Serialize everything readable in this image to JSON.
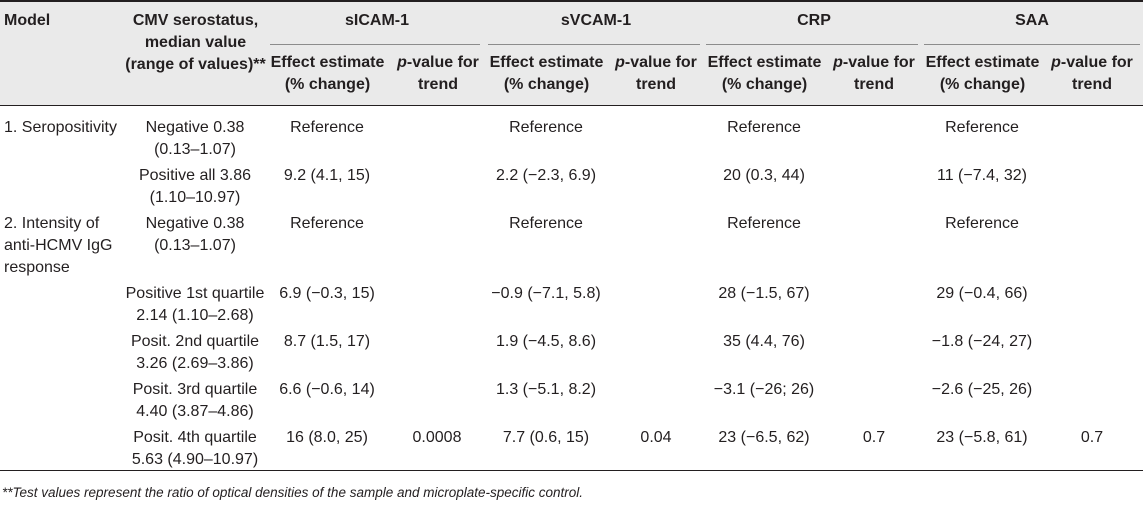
{
  "header": {
    "model": "Model",
    "cmv_line1": "CMV serostatus,",
    "cmv_line2": "median value",
    "cmv_line3": "(range of values)**",
    "groups": [
      "sICAM-1",
      "sVCAM-1",
      "CRP",
      "SAA"
    ],
    "effect_line1": "Effect estimate",
    "effect_line2": "(% change)",
    "p_line1_italic": "p",
    "p_line1_rest": "-value for",
    "p_line2": "trend"
  },
  "rows": [
    {
      "model": [
        "1. Seropositivity"
      ],
      "cmv": [
        "Negative 0.38",
        "(0.13–1.07)"
      ],
      "values": [
        "Reference",
        "",
        "Reference",
        "",
        "Reference",
        "",
        "Reference",
        ""
      ]
    },
    {
      "model": [],
      "cmv": [
        "Positive all 3.86",
        "(1.10–10.97)"
      ],
      "values": [
        "9.2 (4.1, 15)",
        "",
        "2.2 (−2.3, 6.9)",
        "",
        "20 (0.3, 44)",
        "",
        "11 (−7.4, 32)",
        ""
      ]
    },
    {
      "model": [
        "2. Intensity of",
        "anti-HCMV IgG",
        "response"
      ],
      "cmv": [
        "Negative 0.38",
        "(0.13–1.07)"
      ],
      "values": [
        "Reference",
        "",
        "Reference",
        "",
        "Reference",
        "",
        "Reference",
        ""
      ]
    },
    {
      "model": [],
      "cmv": [
        "Positive 1st quartile",
        "2.14 (1.10–2.68)"
      ],
      "values": [
        "6.9 (−0.3, 15)",
        "",
        "−0.9 (−7.1, 5.8)",
        "",
        "28 (−1.5, 67)",
        "",
        "29 (−0.4, 66)",
        ""
      ]
    },
    {
      "model": [],
      "cmv": [
        "Posit. 2nd quartile",
        "3.26 (2.69–3.86)"
      ],
      "values": [
        "8.7 (1.5, 17)",
        "",
        "1.9 (−4.5, 8.6)",
        "",
        "35 (4.4, 76)",
        "",
        "−1.8 (−24, 27)",
        ""
      ]
    },
    {
      "model": [],
      "cmv": [
        "Posit. 3rd quartile",
        "4.40 (3.87–4.86)"
      ],
      "values": [
        "6.6 (−0.6, 14)",
        "",
        "1.3 (−5.1, 8.2)",
        "",
        "−3.1 (−26; 26)",
        "",
        "−2.6 (−25, 26)",
        ""
      ]
    },
    {
      "model": [],
      "cmv": [
        "Posit. 4th quartile",
        "5.63 (4.90–10.97)"
      ],
      "values": [
        "16 (8.0, 25)",
        "0.0008",
        "7.7 (0.6, 15)",
        "0.04",
        "23 (−6.5, 62)",
        "0.7",
        "23 (−5.8, 61)",
        "0.7"
      ]
    }
  ],
  "footnote": "**Test values represent the ratio of optical densities of the sample and microplate-specific control."
}
